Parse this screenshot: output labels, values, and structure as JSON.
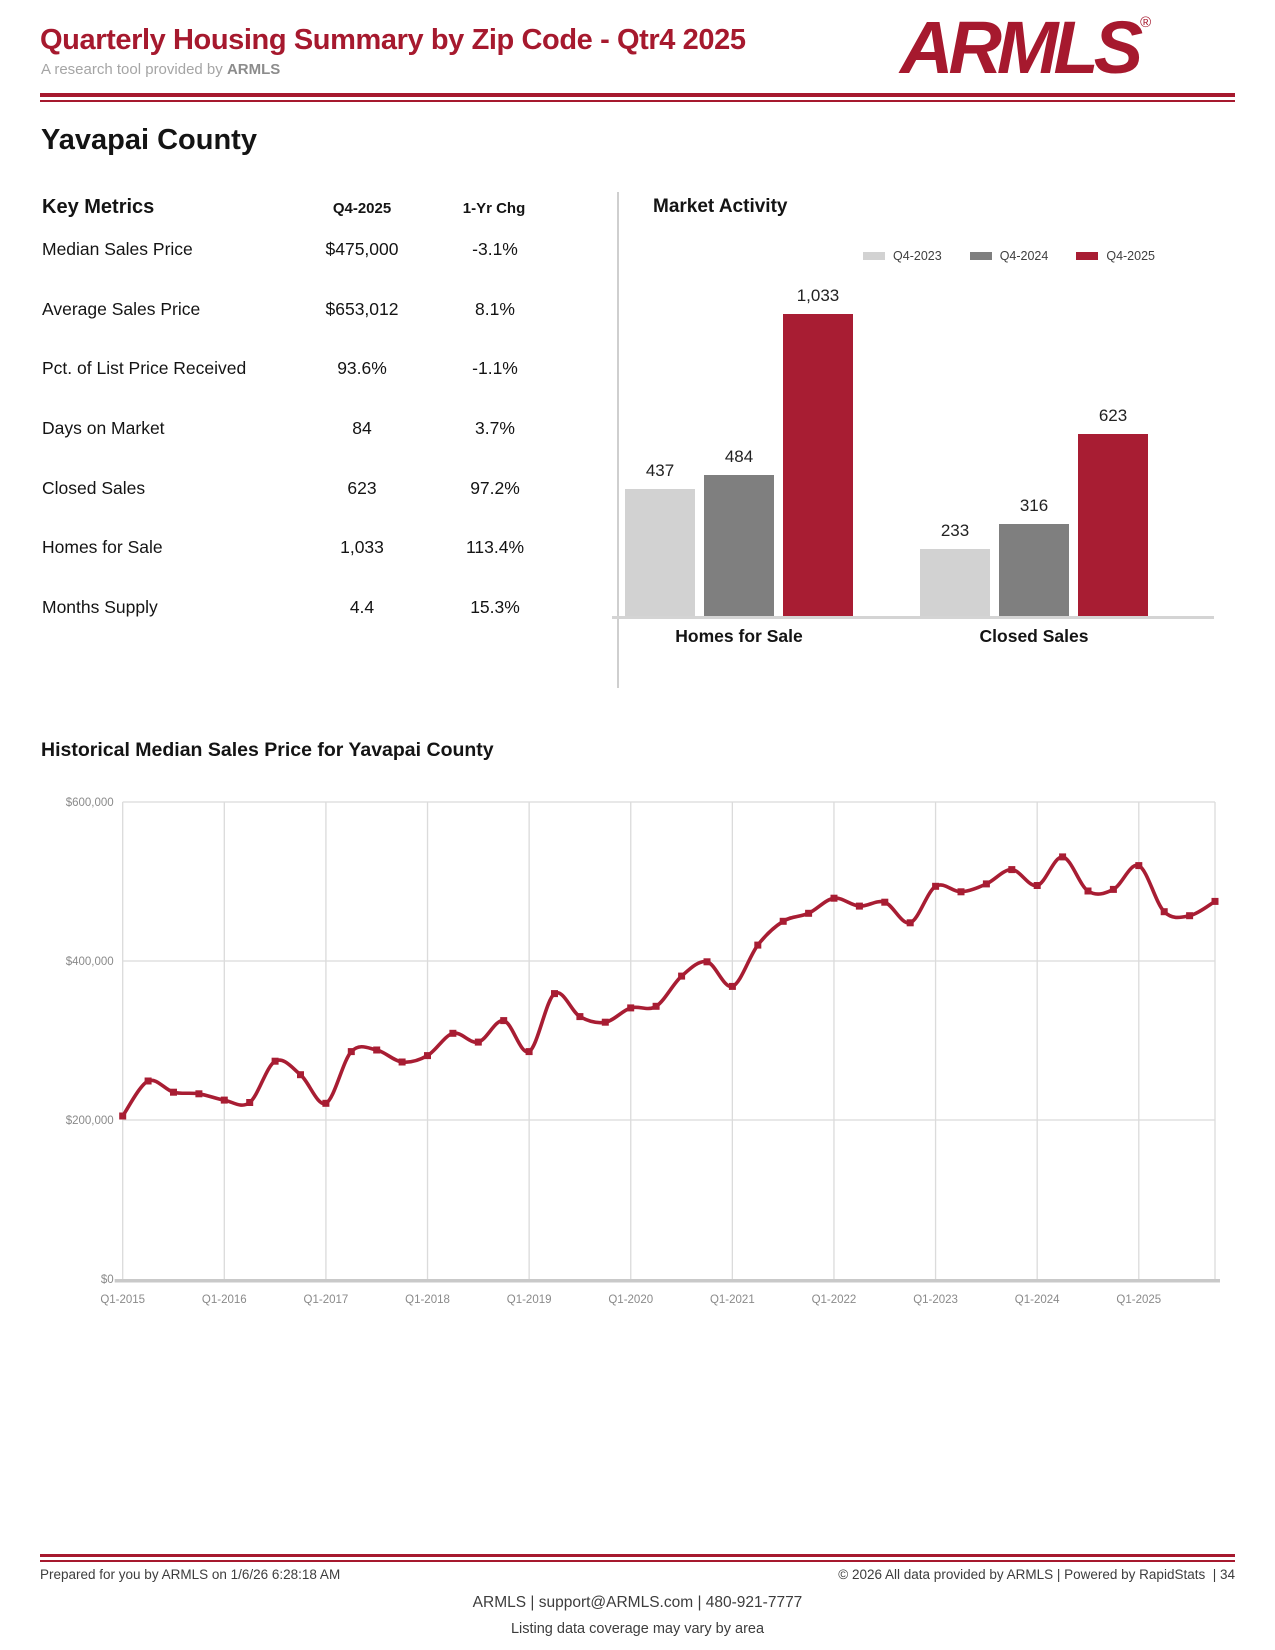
{
  "header": {
    "title": "Quarterly Housing Summary by Zip Code - Qtr4 2025",
    "subtitle_prefix": "A research tool provided by ",
    "subtitle_brand": "ARMLS",
    "logo_text": "ARMLS",
    "logo_reg": "®"
  },
  "county": {
    "name": "Yavapai County"
  },
  "key_metrics": {
    "title": "Key Metrics",
    "col_period": "Q4-2025",
    "col_change": "1-Yr Chg",
    "rows": [
      {
        "label": "Median Sales Price",
        "value": "$475,000",
        "change": "-3.1%"
      },
      {
        "label": "Average Sales Price",
        "value": "$653,012",
        "change": "8.1%"
      },
      {
        "label": "Pct. of List Price Received",
        "value": "93.6%",
        "change": "-1.1%"
      },
      {
        "label": "Days on Market",
        "value": "84",
        "change": "3.7%"
      },
      {
        "label": "Closed Sales",
        "value": "623",
        "change": "97.2%"
      },
      {
        "label": "Homes for Sale",
        "value": "1,033",
        "change": "113.4%"
      },
      {
        "label": "Months Supply",
        "value": "4.4",
        "change": "15.3%"
      }
    ]
  },
  "chart_data": [
    {
      "type": "bar",
      "title": "Market Activity",
      "categories": [
        "Homes for Sale",
        "Closed Sales"
      ],
      "series": [
        {
          "name": "Q4-2023",
          "color": "#D2D2D2",
          "values": [
            437,
            233
          ]
        },
        {
          "name": "Q4-2024",
          "color": "#7F7F7F",
          "values": [
            484,
            316
          ]
        },
        {
          "name": "Q4-2025",
          "color": "#A81D33",
          "values": [
            1033,
            623
          ]
        }
      ],
      "legend_position": "top-right",
      "value_labels": true,
      "ylim": [
        0,
        1100
      ],
      "grid": false
    },
    {
      "type": "line",
      "title": "Historical Median Sales Price for Yavapai County",
      "color": "#A81D33",
      "ylim": [
        0,
        600000
      ],
      "grid": true,
      "y_tick_labels": [
        "$0",
        "$200,000",
        "$400,000",
        "$600,000"
      ],
      "x_tick_labels": [
        "Q1-2015",
        "Q1-2016",
        "Q1-2017",
        "Q1-2018",
        "Q1-2019",
        "Q1-2020",
        "Q1-2021",
        "Q1-2022",
        "Q1-2023",
        "Q1-2024",
        "Q1-2025"
      ],
      "x": [
        "Q1-2015",
        "Q2-2015",
        "Q3-2015",
        "Q4-2015",
        "Q1-2016",
        "Q2-2016",
        "Q3-2016",
        "Q4-2016",
        "Q1-2017",
        "Q2-2017",
        "Q3-2017",
        "Q4-2017",
        "Q1-2018",
        "Q2-2018",
        "Q3-2018",
        "Q4-2018",
        "Q1-2019",
        "Q2-2019",
        "Q3-2019",
        "Q4-2019",
        "Q1-2020",
        "Q2-2020",
        "Q3-2020",
        "Q4-2020",
        "Q1-2021",
        "Q2-2021",
        "Q3-2021",
        "Q4-2021",
        "Q1-2022",
        "Q2-2022",
        "Q3-2022",
        "Q4-2022",
        "Q1-2023",
        "Q2-2023",
        "Q3-2023",
        "Q4-2023",
        "Q1-2024",
        "Q2-2024",
        "Q3-2024",
        "Q4-2024",
        "Q1-2025",
        "Q2-2025",
        "Q3-2025",
        "Q4-2025"
      ],
      "values": [
        205000,
        249000,
        235000,
        233000,
        225000,
        222000,
        274000,
        257000,
        221000,
        286000,
        288000,
        273000,
        281000,
        309000,
        298000,
        325000,
        286000,
        359000,
        330000,
        323000,
        341000,
        343000,
        381000,
        399000,
        368000,
        420000,
        450000,
        460000,
        479000,
        469000,
        474000,
        448000,
        494000,
        487000,
        497000,
        515000,
        495000,
        531000,
        488000,
        490000,
        520000,
        462000,
        457000,
        475000
      ]
    }
  ],
  "footer": {
    "prepared": "Prepared for you by ARMLS on 1/6/26 6:28:18 AM",
    "copyright": "© 2026 All data provided by ARMLS | Powered by RapidStats  | 34",
    "contact": "ARMLS | support@ARMLS.com | 480-921-7777",
    "coverage": "Listing data coverage may vary by area"
  },
  "colors": {
    "brand_red": "#A6192E",
    "chart_red": "#A81D33",
    "bar_gray_light": "#D2D2D2",
    "bar_gray_dark": "#7F7F7F",
    "gridline": "#DBDBDB",
    "axis_line": "#C9C9C9"
  }
}
